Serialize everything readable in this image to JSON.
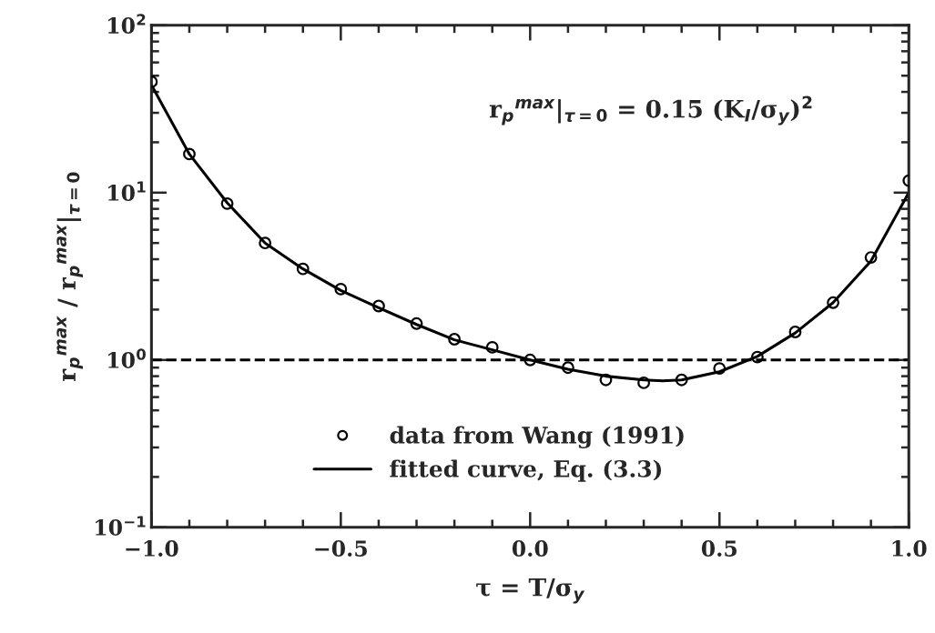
{
  "chart_data": {
    "type": "scatter",
    "xlabel": "τ = T/σ$_{y}$",
    "ylabel": "r$_{p}$$^{max}$ / r$_{p}$$^{max}$|$_{τ=0}$",
    "annotations": [
      "r$_{p}$$^{max}$|$_{τ=0}$ = 0.15 (K$_{I}$/σ$_{y}$)$^{2}$"
    ],
    "log": "y",
    "xlim": [
      -1.0,
      1.0
    ],
    "ylim": [
      0.1,
      100
    ],
    "xticks": [
      {
        "value": -1.0,
        "label": "−1.0"
      },
      {
        "value": -0.5,
        "label": "−0.5"
      },
      {
        "value": 0.0,
        "label": "0.0"
      },
      {
        "value": 0.5,
        "label": "0.5"
      },
      {
        "value": 1.0,
        "label": "1.0"
      }
    ],
    "yticks": [
      {
        "value": 0.1,
        "label": "10$^{−1}$"
      },
      {
        "value": 1,
        "label": "10$^{0}$"
      },
      {
        "value": 10,
        "label": "10$^{1}$"
      },
      {
        "value": 100,
        "label": "10$^{2}$"
      }
    ],
    "grid": false,
    "legend": "bottom",
    "ref_lines": [
      {
        "axis": "y",
        "value": 1,
        "line_style": "dashed",
        "color": "#000000"
      }
    ],
    "series": [
      {
        "name": "data from Wang (1991)",
        "marker": "circle",
        "color": "#000000",
        "x": [
          -1.0,
          -0.9,
          -0.8,
          -0.7,
          -0.6,
          -0.5,
          -0.4,
          -0.3,
          -0.2,
          -0.1,
          0.0,
          0.1,
          0.2,
          0.3,
          0.4,
          0.5,
          0.6,
          0.7,
          0.8,
          0.9,
          1.0
        ],
        "values": [
          46,
          17,
          8.6,
          5.0,
          3.5,
          2.65,
          2.1,
          1.65,
          1.33,
          1.19,
          1.0,
          0.9,
          0.76,
          0.73,
          0.76,
          0.89,
          1.04,
          1.47,
          2.2,
          4.1,
          11.8
        ]
      },
      {
        "name": "fitted curve, Eq. (3.3)",
        "type": "line",
        "line_style": "solid",
        "marker": "none",
        "color": "#000000",
        "x": [
          -1.0,
          -0.9,
          -0.8,
          -0.7,
          -0.6,
          -0.5,
          -0.4,
          -0.3,
          -0.2,
          -0.1,
          0.0,
          0.1,
          0.2,
          0.3,
          0.35,
          0.4,
          0.5,
          0.6,
          0.7,
          0.8,
          0.9,
          1.0
        ],
        "values": [
          44,
          17,
          8.7,
          5.0,
          3.5,
          2.6,
          2.05,
          1.63,
          1.32,
          1.15,
          1.0,
          0.88,
          0.8,
          0.76,
          0.75,
          0.76,
          0.85,
          1.05,
          1.45,
          2.2,
          3.9,
          10
        ]
      }
    ]
  }
}
